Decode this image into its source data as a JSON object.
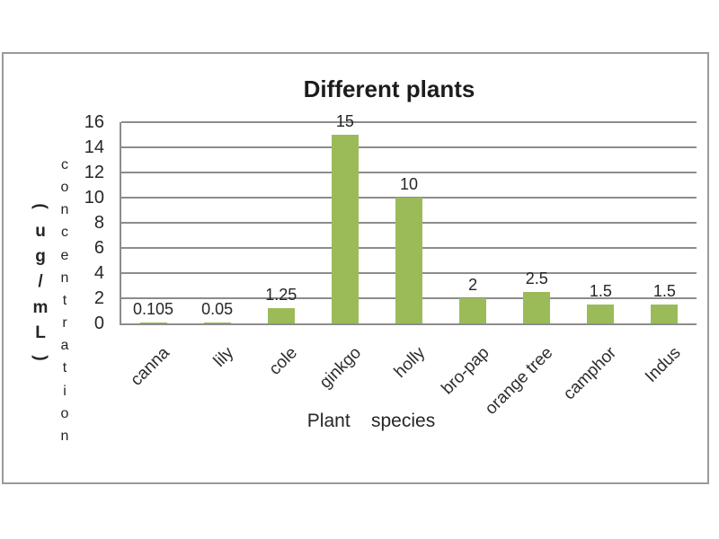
{
  "chart_data": {
    "type": "bar",
    "title": "Different plants",
    "categories": [
      "canna",
      "lily",
      "cole",
      "ginkgo",
      "holly",
      "bro-pap",
      "orange tree",
      "camphor",
      "Indus"
    ],
    "values": [
      0.105,
      0.05,
      1.25,
      15,
      10,
      2,
      2.5,
      1.5,
      1.5
    ],
    "data_labels": [
      "0.105",
      "0.05",
      "1.25",
      "15",
      "10",
      "2",
      "2.5",
      "1.5",
      "1.5"
    ],
    "xlabel": "Plant    species",
    "ylabel": "concentration",
    "ylabel_unit": "(ug/mL)",
    "ylim": [
      0,
      16
    ],
    "ytick_step": 2,
    "yticks": [
      16,
      14,
      12,
      10,
      8,
      6,
      4,
      2,
      0
    ],
    "grid": true,
    "legend": false,
    "bar_color": "#9bbb59",
    "grid_color": "#8c8c8c",
    "box_border_color": "#9a9a9a",
    "text_color": "#262626"
  }
}
